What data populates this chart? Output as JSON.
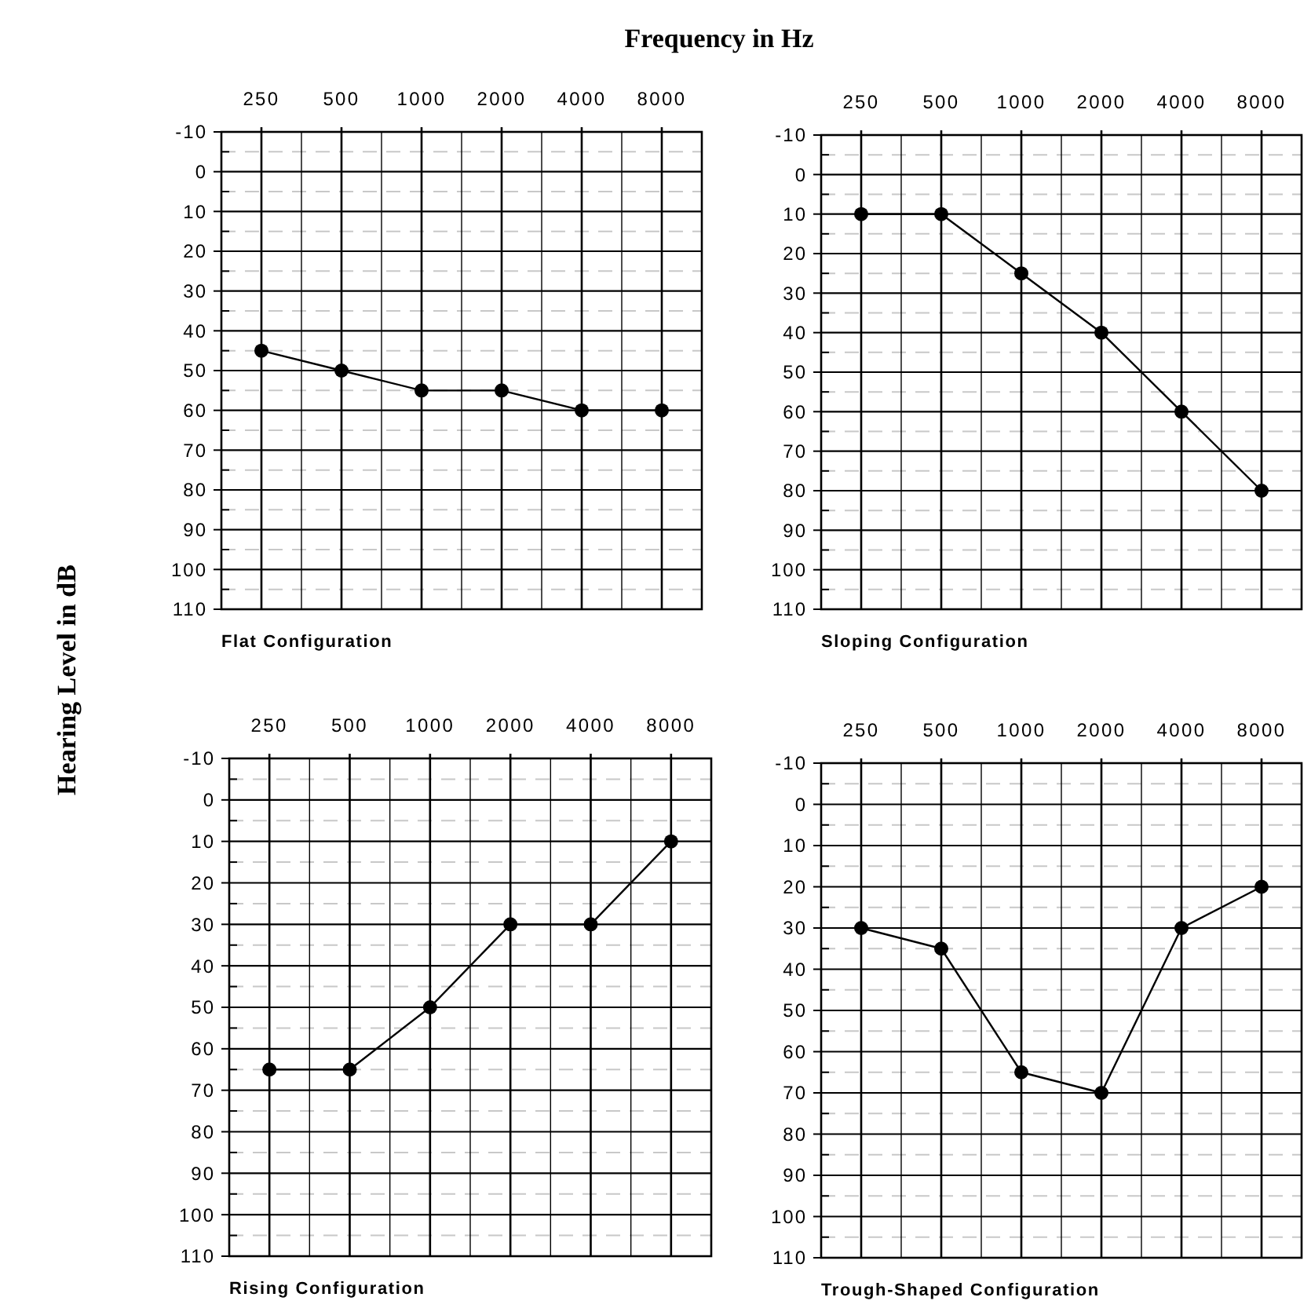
{
  "chart_data": [
    {
      "type": "line",
      "title": "Flat Configuration",
      "xlabel": "Frequency in Hz",
      "ylabel": "Hearing Level in dB",
      "categories": [
        "250",
        "500",
        "1000",
        "2000",
        "4000",
        "8000"
      ],
      "values": [
        45,
        50,
        55,
        55,
        60,
        60
      ],
      "color": "#000000",
      "ylim": [
        110,
        -10
      ],
      "yticks": [
        -10,
        0,
        10,
        20,
        30,
        40,
        50,
        60,
        70,
        80,
        90,
        100,
        110
      ],
      "grid": true,
      "marker": "circle",
      "line_style": "solid"
    },
    {
      "type": "line",
      "title": "Sloping Configuration",
      "categories": [
        "250",
        "500",
        "1000",
        "2000",
        "4000",
        "8000"
      ],
      "values": [
        10,
        10,
        25,
        40,
        60,
        80
      ],
      "color": "#000000",
      "ylim": [
        110,
        -10
      ],
      "yticks": [
        -10,
        0,
        10,
        20,
        30,
        40,
        50,
        60,
        70,
        80,
        90,
        100,
        110
      ],
      "grid": true,
      "marker": "circle",
      "line_style": "solid"
    },
    {
      "type": "line",
      "title": "Rising Configuration",
      "categories": [
        "250",
        "500",
        "1000",
        "2000",
        "4000",
        "8000"
      ],
      "values": [
        65,
        65,
        50,
        30,
        30,
        10
      ],
      "color": "#000000",
      "ylim": [
        110,
        -10
      ],
      "yticks": [
        -10,
        0,
        10,
        20,
        30,
        40,
        50,
        60,
        70,
        80,
        90,
        100,
        110
      ],
      "grid": true,
      "marker": "circle",
      "line_style": "solid"
    },
    {
      "type": "line",
      "title": "Trough-Shaped Configuration",
      "categories": [
        "250",
        "500",
        "1000",
        "2000",
        "4000",
        "8000"
      ],
      "values": [
        30,
        35,
        65,
        70,
        30,
        20
      ],
      "color": "#000000",
      "ylim": [
        110,
        -10
      ],
      "yticks": [
        -10,
        0,
        10,
        20,
        30,
        40,
        50,
        60,
        70,
        80,
        90,
        100,
        110
      ],
      "grid": true,
      "marker": "circle",
      "line_style": "solid"
    }
  ]
}
